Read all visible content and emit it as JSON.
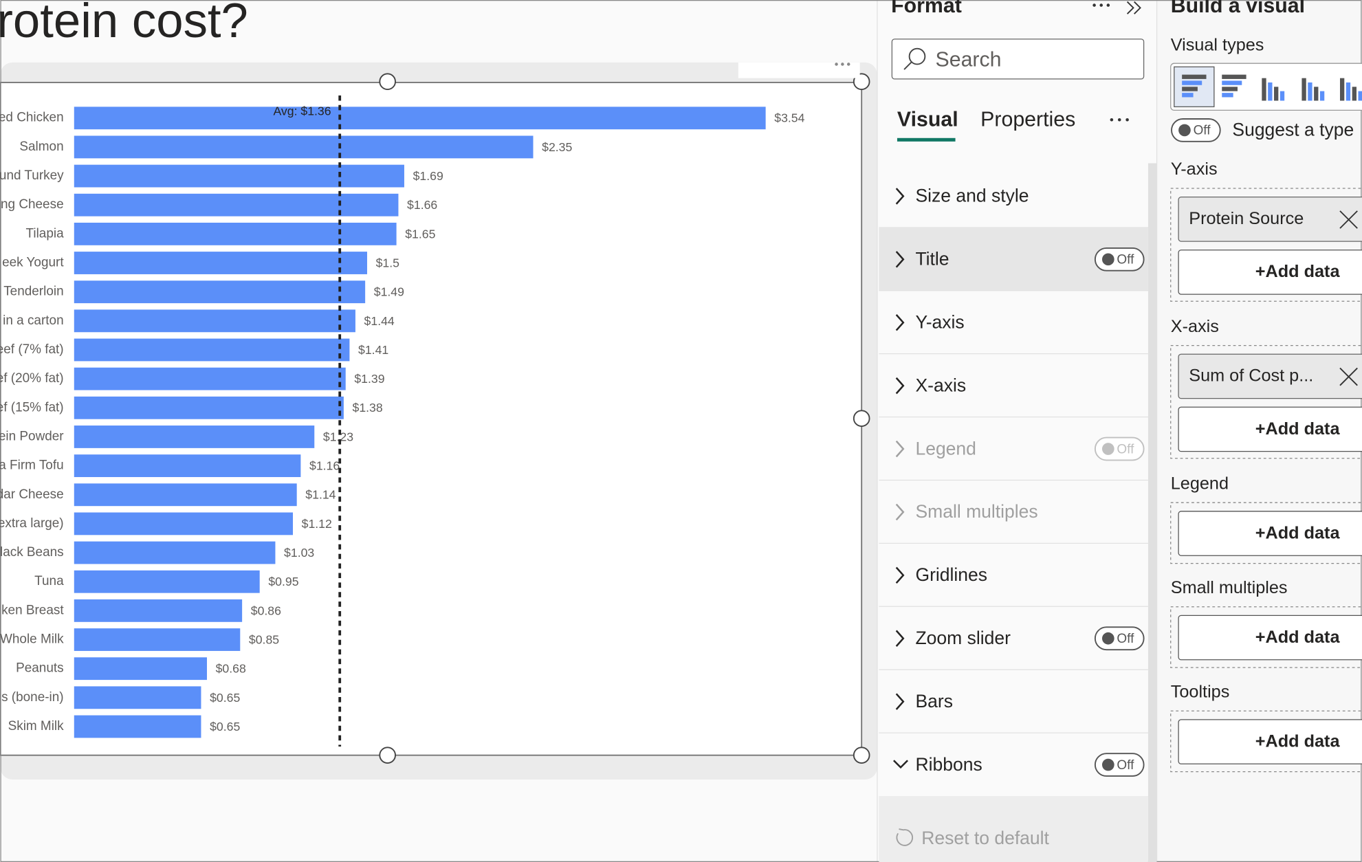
{
  "chart_data": {
    "type": "bar",
    "orientation": "horizontal",
    "title": "rotein cost?",
    "categories": [
      "ed Chicken",
      "Salmon",
      "und Turkey",
      "ng Cheese",
      "Tilapia",
      "eek Yogurt",
      "Tenderloin",
      "in a carton",
      "eef (7% fat)",
      "ef (20% fat)",
      "ef (15% fat)",
      "ein Powder",
      "a Firm Tofu",
      "dar Cheese",
      "extra large)",
      "lack Beans",
      "Tuna",
      "ken Breast",
      "Whole Milk",
      "Peanuts",
      "s (bone-in)",
      "Skim Milk"
    ],
    "values": [
      3.54,
      2.35,
      1.69,
      1.66,
      1.65,
      1.5,
      1.49,
      1.44,
      1.41,
      1.39,
      1.38,
      1.23,
      1.16,
      1.14,
      1.12,
      1.03,
      0.95,
      0.86,
      0.85,
      0.68,
      0.65,
      0.65
    ],
    "value_labels": [
      "$3.54",
      "$2.35",
      "$1.69",
      "$1.66",
      "$1.65",
      "$1.5",
      "$1.49",
      "$1.44",
      "$1.41",
      "$1.39",
      "$1.38",
      "$1.23",
      "$1.16",
      "$1.14",
      "$1.12",
      "$1.03",
      "$0.95",
      "$0.86",
      "$0.85",
      "$0.68",
      "$0.65",
      "$0.65"
    ],
    "color": "#5b8ff9",
    "xlim": [
      0,
      4
    ],
    "average": {
      "value": 1.36,
      "label": "Avg: $1.36"
    }
  },
  "format": {
    "title": "Format",
    "search": "Search",
    "tabs": [
      "Visual",
      "Properties"
    ],
    "sections": [
      {
        "label": "Size and style"
      },
      {
        "label": "Title",
        "toggle": "Off"
      },
      {
        "label": "Y-axis"
      },
      {
        "label": "X-axis"
      },
      {
        "label": "Legend",
        "toggle": "Off",
        "enabled": false
      },
      {
        "label": "Small multiples",
        "enabled": false
      },
      {
        "label": "Gridlines"
      },
      {
        "label": "Zoom slider",
        "toggle": "Off"
      },
      {
        "label": "Bars"
      },
      {
        "label": "Ribbons",
        "toggle": "Off",
        "expanded": true
      }
    ],
    "reset": "Reset to default"
  },
  "build": {
    "title": "Build a visual",
    "visual_types": "Visual types",
    "suggest_toggle": "Off",
    "suggest": "Suggest a type",
    "wells": [
      {
        "label": "Y-axis",
        "field": "Protein Source",
        "add": "+Add data"
      },
      {
        "label": "X-axis",
        "field": "Sum of Cost p...",
        "add": "+Add data"
      },
      {
        "label": "Legend",
        "add": "+Add data"
      },
      {
        "label": "Small multiples",
        "add": "+Add data"
      },
      {
        "label": "Tooltips",
        "add": "+Add data"
      }
    ]
  }
}
